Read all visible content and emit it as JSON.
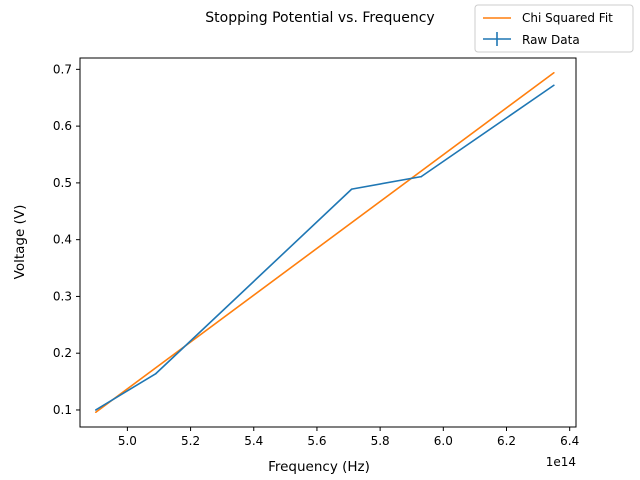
{
  "chart_data": {
    "type": "line",
    "title": "Stopping Potential vs. Frequency",
    "xlabel": "Frequency (Hz)",
    "ylabel": "Voltage (V)",
    "x_offset_label": "1e14",
    "x_scale": 100000000000000.0,
    "xlim": [
      4.85,
      6.42
    ],
    "ylim": [
      0.07,
      0.72
    ],
    "xticks": [
      5.0,
      5.2,
      5.4,
      5.6,
      5.8,
      6.0,
      6.2,
      6.4
    ],
    "xtick_labels": [
      "5.0",
      "5.2",
      "5.4",
      "5.6",
      "5.8",
      "6.0",
      "6.2",
      "6.4"
    ],
    "yticks": [
      0.1,
      0.2,
      0.3,
      0.4,
      0.5,
      0.6,
      0.7
    ],
    "ytick_labels": [
      "0.1",
      "0.2",
      "0.3",
      "0.4",
      "0.5",
      "0.6",
      "0.7"
    ],
    "legend_position": "top-right (outside plot)",
    "grid": false,
    "series": [
      {
        "name": "Chi Squared Fit",
        "color": "#ff7f0e",
        "style": "line",
        "x": [
          4.9,
          6.35
        ],
        "y": [
          0.096,
          0.694
        ]
      },
      {
        "name": "Raw Data",
        "color": "#1f77b4",
        "style": "errorbar",
        "x": [
          4.9,
          5.09,
          5.71,
          5.93,
          6.35
        ],
        "y": [
          0.1,
          0.164,
          0.489,
          0.511,
          0.672
        ]
      }
    ]
  }
}
